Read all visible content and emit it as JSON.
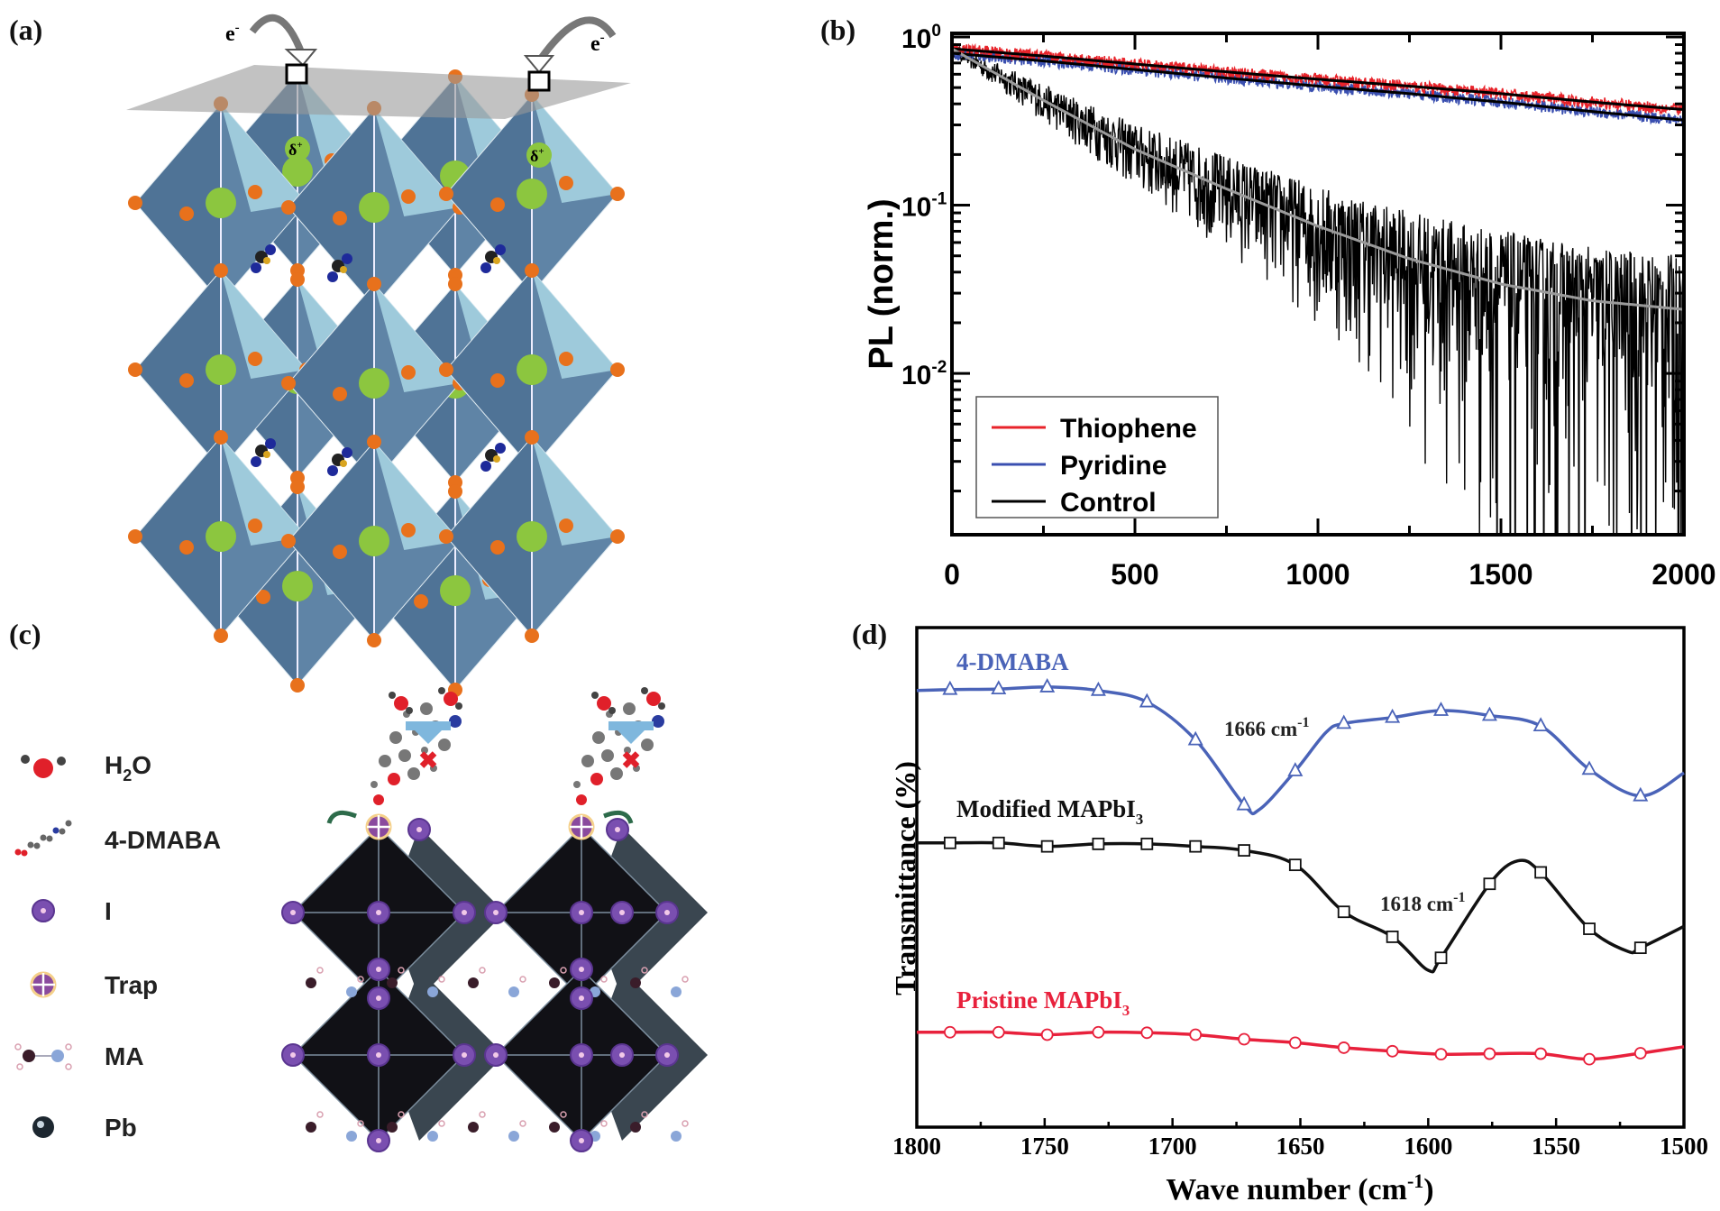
{
  "panels": {
    "a": {
      "label": "(a)",
      "electron_left": "e",
      "electron_right": "e",
      "electron_sup": "-",
      "delta": "δ",
      "delta_sup": "+"
    },
    "b": {
      "label": "(b)"
    },
    "c": {
      "label": "(c)",
      "legend": [
        {
          "icon": "water-molecule-icon",
          "text": "H",
          "sub": "2",
          "text2": "O"
        },
        {
          "icon": "dmaba-molecule-icon",
          "text": "4-DMABA",
          "sub": "",
          "text2": ""
        },
        {
          "icon": "iodine-atom-icon",
          "text": "I",
          "sub": "",
          "text2": ""
        },
        {
          "icon": "trap-icon",
          "text": "Trap",
          "sub": "",
          "text2": ""
        },
        {
          "icon": "methylammonium-icon",
          "text": "MA",
          "sub": "",
          "text2": ""
        },
        {
          "icon": "lead-atom-icon",
          "text": "Pb",
          "sub": "",
          "text2": ""
        }
      ]
    },
    "d": {
      "label": "(d)"
    }
  },
  "colors": {
    "thiophene": "#e8232a",
    "pyridine": "#3a4fb0",
    "control": "#000000",
    "control_fit": "#9a9a9a",
    "dmaba": "#4a63b8",
    "modified": "#111111",
    "pristine": "#e8213c",
    "octahedron_a": "#4f7396",
    "octahedron_a_light": "#a9d6e4",
    "cation_a": "#8cc63f",
    "halide_a": "#e8711c",
    "octahedron_c": "#16161c",
    "iodine": "#7a4fb0"
  },
  "chart_data": [
    {
      "type": "line",
      "panel": "b",
      "xlabel": "",
      "ylabel": "PL (norm.)",
      "xlim": [
        0,
        2000
      ],
      "ylim": [
        0.0011,
        1.05
      ],
      "yscale": "log",
      "xticks": [
        "0",
        "500",
        "1000",
        "1500",
        "2000"
      ],
      "xtick_values": [
        0,
        500,
        1000,
        1500,
        2000
      ],
      "yticks": [
        {
          "base": "10",
          "exp": "0",
          "value": 1
        },
        {
          "base": "10",
          "exp": "-1",
          "value": 0.1
        },
        {
          "base": "10",
          "exp": "-2",
          "value": 0.01
        }
      ],
      "legend_position": "bottom-left",
      "x": [
        0,
        250,
        500,
        750,
        1000,
        1250,
        1500,
        1750,
        2000
      ],
      "series": [
        {
          "name": "Thiophene",
          "color": "#e8232a",
          "values": [
            0.85,
            0.77,
            0.69,
            0.62,
            0.56,
            0.51,
            0.46,
            0.41,
            0.37
          ]
        },
        {
          "name": "Pyridine",
          "color": "#3a4fb0",
          "values": [
            0.8,
            0.72,
            0.64,
            0.57,
            0.51,
            0.46,
            0.41,
            0.36,
            0.32
          ]
        },
        {
          "name": "Control",
          "color": "#000000",
          "fit_color": "#9a9a9a",
          "values": [
            0.85,
            0.42,
            0.215,
            0.125,
            0.075,
            0.048,
            0.034,
            0.027,
            0.024
          ]
        }
      ]
    },
    {
      "type": "line",
      "panel": "d",
      "xlabel": "Wave number (cm",
      "xlabel_sup": "-1",
      "xlabel_end": ")",
      "ylabel": "Transmittance (%)",
      "xlim": [
        1800,
        1500
      ],
      "ylim": [
        0,
        1
      ],
      "xticks": [
        "1800",
        "1750",
        "1700",
        "1650",
        "1600",
        "1550",
        "1500"
      ],
      "xtick_values": [
        1800,
        1750,
        1700,
        1650,
        1600,
        1550,
        1500
      ],
      "marker_x": [
        1787,
        1768,
        1749,
        1729,
        1710,
        1691,
        1672,
        1652,
        1633,
        1614,
        1595,
        1576,
        1556,
        1537,
        1517
      ],
      "series": [
        {
          "name": "4-DMABA",
          "name_sub": "",
          "color": "#4a63b8",
          "marker": "triangle",
          "points": [
            [
              1800,
              0.874
            ],
            [
              1787,
              0.876
            ],
            [
              1768,
              0.877
            ],
            [
              1749,
              0.881
            ],
            [
              1729,
              0.874
            ],
            [
              1710,
              0.851
            ],
            [
              1691,
              0.775
            ],
            [
              1672,
              0.645
            ],
            [
              1666,
              0.636
            ],
            [
              1652,
              0.713
            ],
            [
              1640,
              0.79
            ],
            [
              1633,
              0.808
            ],
            [
              1614,
              0.82
            ],
            [
              1595,
              0.834
            ],
            [
              1576,
              0.824
            ],
            [
              1556,
              0.803
            ],
            [
              1537,
              0.716
            ],
            [
              1517,
              0.663
            ],
            [
              1500,
              0.709
            ]
          ]
        },
        {
          "name": "Modified MAPbI",
          "name_sub": "3",
          "color": "#111111",
          "marker": "square",
          "points": [
            [
              1800,
              0.569
            ],
            [
              1787,
              0.569
            ],
            [
              1768,
              0.569
            ],
            [
              1749,
              0.562
            ],
            [
              1729,
              0.567
            ],
            [
              1710,
              0.567
            ],
            [
              1691,
              0.562
            ],
            [
              1672,
              0.554
            ],
            [
              1652,
              0.525
            ],
            [
              1633,
              0.431
            ],
            [
              1614,
              0.381
            ],
            [
              1600,
              0.314
            ],
            [
              1595,
              0.339
            ],
            [
              1576,
              0.487
            ],
            [
              1565,
              0.533
            ],
            [
              1556,
              0.51
            ],
            [
              1537,
              0.397
            ],
            [
              1522,
              0.352
            ],
            [
              1517,
              0.359
            ],
            [
              1500,
              0.402
            ]
          ]
        },
        {
          "name": "Pristine MAPbI",
          "name_sub": "3",
          "color": "#e8213c",
          "marker": "circle",
          "points": [
            [
              1800,
              0.19
            ],
            [
              1787,
              0.19
            ],
            [
              1768,
              0.19
            ],
            [
              1749,
              0.185
            ],
            [
              1729,
              0.19
            ],
            [
              1710,
              0.189
            ],
            [
              1691,
              0.185
            ],
            [
              1672,
              0.176
            ],
            [
              1652,
              0.169
            ],
            [
              1633,
              0.159
            ],
            [
              1614,
              0.152
            ],
            [
              1595,
              0.146
            ],
            [
              1576,
              0.147
            ],
            [
              1556,
              0.147
            ],
            [
              1537,
              0.136
            ],
            [
              1517,
              0.148
            ],
            [
              1500,
              0.161
            ]
          ]
        }
      ],
      "annotations": [
        {
          "text": "1666 cm",
          "sup": "-1"
        },
        {
          "text": "1618 cm",
          "sup": "-1"
        }
      ]
    }
  ]
}
